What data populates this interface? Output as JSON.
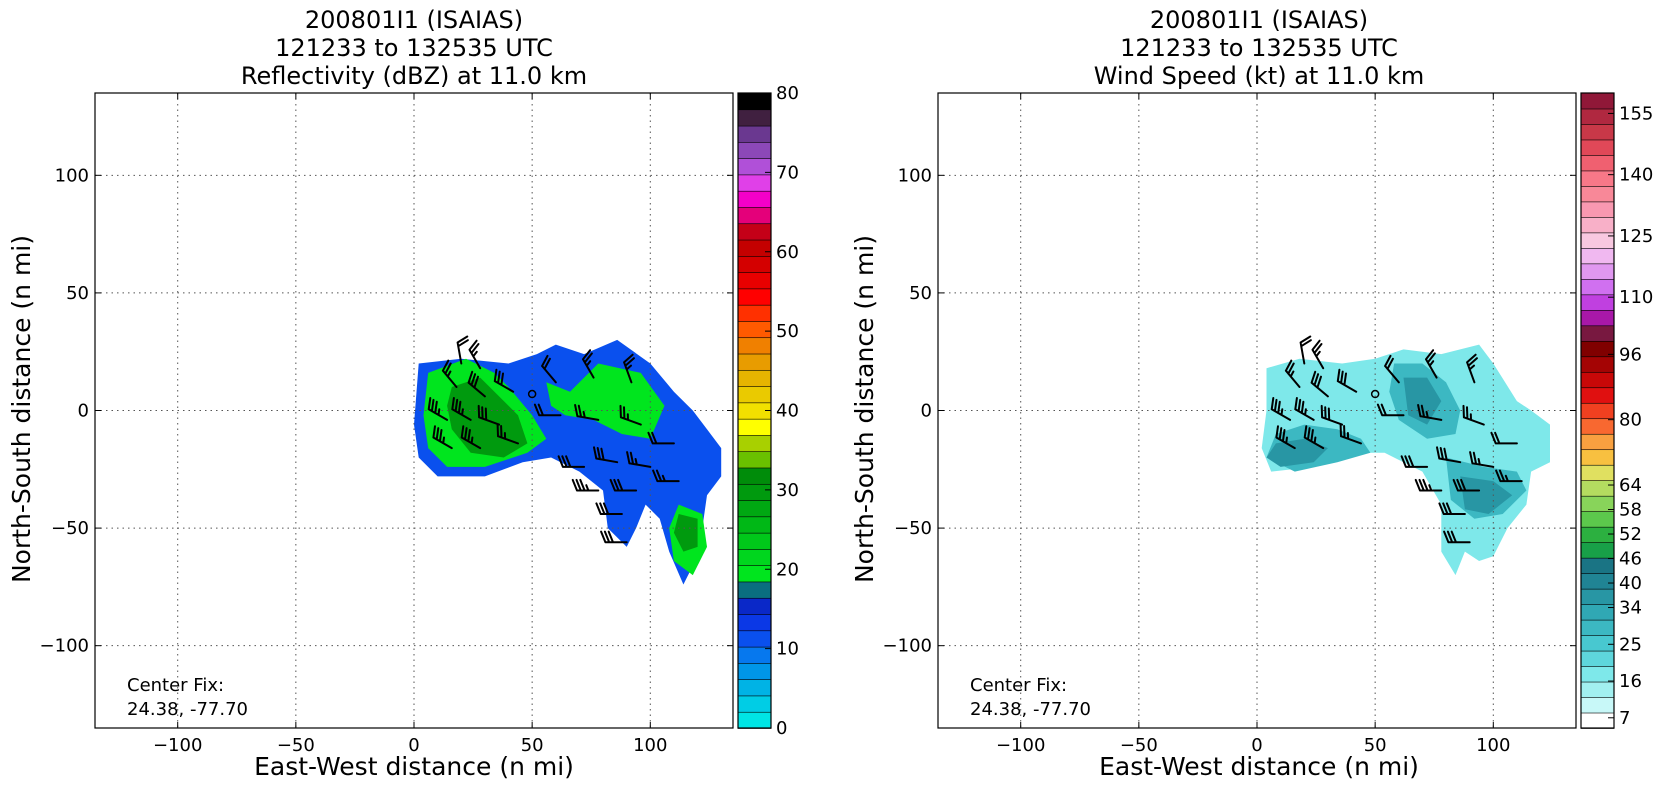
{
  "chart_data": [
    {
      "type": "heatmap",
      "title_lines": [
        "200801I1 (ISAIAS)",
        "121233 to 132535 UTC",
        "Reflectivity (dBZ) at 11.0 km"
      ],
      "xlabel": "East-West distance (n mi)",
      "ylabel": "North-South distance (n mi)",
      "xlim": [
        -135,
        135
      ],
      "ylim": [
        -135,
        135
      ],
      "xticks": [
        -100,
        -50,
        0,
        50,
        100
      ],
      "yticks": [
        -100,
        -50,
        0,
        50,
        100
      ],
      "grid": true,
      "annotation_lines": [
        "Center Fix:",
        "24.38, -77.70"
      ],
      "center_marker": [
        50,
        7
      ],
      "colorbar": {
        "min": 0,
        "max": 80,
        "step": 2.5,
        "tick_values": [
          0,
          10,
          20,
          30,
          40,
          50,
          60,
          70,
          80
        ],
        "colors": [
          "#00e5e5",
          "#00cde5",
          "#00b3e5",
          "#0096e8",
          "#0678ee",
          "#0a50ee",
          "#0b38e6",
          "#0a28c8",
          "#0a6e80",
          "#00e51e",
          "#00d61e",
          "#00c81a",
          "#00b816",
          "#00a812",
          "#009a0e",
          "#008c0a",
          "#6ac000",
          "#a8d000",
          "#ffff00",
          "#f2e000",
          "#eaca00",
          "#e6b400",
          "#e89c00",
          "#f08000",
          "#ff5a00",
          "#ff3000",
          "#ff0000",
          "#e80000",
          "#d40000",
          "#c40000",
          "#c40018",
          "#e4007a",
          "#f400c8",
          "#e040e8",
          "#b050d8",
          "#8c48b8",
          "#6a3890",
          "#402040",
          "#000000"
        ]
      },
      "echo_regions": [
        {
          "level": 5,
          "points": [
            [
              2,
              20
            ],
            [
              20,
              22
            ],
            [
              40,
              20
            ],
            [
              52,
              24
            ],
            [
              60,
              28
            ],
            [
              72,
              24
            ],
            [
              86,
              30
            ],
            [
              100,
              20
            ],
            [
              110,
              8
            ],
            [
              118,
              0
            ],
            [
              124,
              -8
            ],
            [
              130,
              -16
            ],
            [
              130,
              -28
            ],
            [
              124,
              -36
            ],
            [
              122,
              -50
            ],
            [
              120,
              -62
            ],
            [
              114,
              -74
            ],
            [
              108,
              -60
            ],
            [
              104,
              -46
            ],
            [
              98,
              -40
            ],
            [
              94,
              -50
            ],
            [
              90,
              -58
            ],
            [
              82,
              -50
            ],
            [
              80,
              -34
            ],
            [
              70,
              -26
            ],
            [
              58,
              -20
            ],
            [
              46,
              -22
            ],
            [
              30,
              -28
            ],
            [
              10,
              -28
            ],
            [
              2,
              -20
            ],
            [
              0,
              -6
            ]
          ]
        },
        {
          "level": 9,
          "points": [
            [
              6,
              16
            ],
            [
              22,
              22
            ],
            [
              34,
              16
            ],
            [
              40,
              10
            ],
            [
              50,
              -2
            ],
            [
              56,
              -12
            ],
            [
              48,
              -18
            ],
            [
              30,
              -24
            ],
            [
              14,
              -24
            ],
            [
              6,
              -16
            ],
            [
              4,
              -2
            ]
          ]
        },
        {
          "level": 9,
          "points": [
            [
              56,
              12
            ],
            [
              66,
              8
            ],
            [
              78,
              20
            ],
            [
              96,
              16
            ],
            [
              106,
              2
            ],
            [
              100,
              -12
            ],
            [
              88,
              -10
            ],
            [
              76,
              -4
            ],
            [
              64,
              -2
            ],
            [
              58,
              2
            ]
          ]
        },
        {
          "level": 9,
          "points": [
            [
              112,
              -40
            ],
            [
              122,
              -44
            ],
            [
              124,
              -58
            ],
            [
              118,
              -70
            ],
            [
              110,
              -64
            ],
            [
              108,
              -50
            ]
          ]
        },
        {
          "level": 14,
          "points": [
            [
              16,
              10
            ],
            [
              28,
              14
            ],
            [
              36,
              6
            ],
            [
              44,
              -2
            ],
            [
              48,
              -14
            ],
            [
              38,
              -20
            ],
            [
              24,
              -18
            ],
            [
              16,
              -8
            ],
            [
              14,
              2
            ]
          ]
        },
        {
          "level": 14,
          "points": [
            [
              112,
              -44
            ],
            [
              120,
              -46
            ],
            [
              120,
              -58
            ],
            [
              114,
              -60
            ],
            [
              110,
              -52
            ]
          ]
        }
      ],
      "barbs": [
        {
          "x": 20,
          "y": 20,
          "dir": 350,
          "kt": 20
        },
        {
          "x": 28,
          "y": 18,
          "dir": 330,
          "kt": 25
        },
        {
          "x": 18,
          "y": 10,
          "dir": 320,
          "kt": 25
        },
        {
          "x": 30,
          "y": 6,
          "dir": 310,
          "kt": 30
        },
        {
          "x": 42,
          "y": 8,
          "dir": 300,
          "kt": 30
        },
        {
          "x": 14,
          "y": -4,
          "dir": 300,
          "kt": 35
        },
        {
          "x": 24,
          "y": -4,
          "dir": 300,
          "kt": 35
        },
        {
          "x": 36,
          "y": -6,
          "dir": 290,
          "kt": 30
        },
        {
          "x": 16,
          "y": -16,
          "dir": 300,
          "kt": 35
        },
        {
          "x": 28,
          "y": -16,
          "dir": 300,
          "kt": 35
        },
        {
          "x": 44,
          "y": -14,
          "dir": 290,
          "kt": 25
        },
        {
          "x": 60,
          "y": 12,
          "dir": 320,
          "kt": 20
        },
        {
          "x": 76,
          "y": 14,
          "dir": 330,
          "kt": 25
        },
        {
          "x": 92,
          "y": 12,
          "dir": 340,
          "kt": 25
        },
        {
          "x": 62,
          "y": -2,
          "dir": 270,
          "kt": 20
        },
        {
          "x": 78,
          "y": -4,
          "dir": 280,
          "kt": 25
        },
        {
          "x": 96,
          "y": -6,
          "dir": 290,
          "kt": 25
        },
        {
          "x": 110,
          "y": -14,
          "dir": 270,
          "kt": 20
        },
        {
          "x": 72,
          "y": -24,
          "dir": 270,
          "kt": 30
        },
        {
          "x": 86,
          "y": -22,
          "dir": 280,
          "kt": 30
        },
        {
          "x": 100,
          "y": -24,
          "dir": 280,
          "kt": 25
        },
        {
          "x": 78,
          "y": -34,
          "dir": 270,
          "kt": 35
        },
        {
          "x": 94,
          "y": -34,
          "dir": 270,
          "kt": 30
        },
        {
          "x": 112,
          "y": -30,
          "dir": 270,
          "kt": 25
        },
        {
          "x": 88,
          "y": -44,
          "dir": 270,
          "kt": 30
        },
        {
          "x": 90,
          "y": -56,
          "dir": 270,
          "kt": 30
        }
      ]
    },
    {
      "type": "heatmap",
      "title_lines": [
        "200801I1 (ISAIAS)",
        "121233 to 132535 UTC",
        "Wind Speed (kt) at 11.0 km"
      ],
      "xlabel": "East-West distance (n mi)",
      "ylabel": "North-South distance (n mi)",
      "xlim": [
        -135,
        135
      ],
      "ylim": [
        -135,
        135
      ],
      "xticks": [
        -100,
        -50,
        0,
        50,
        100
      ],
      "yticks": [
        -100,
        -50,
        0,
        50,
        100
      ],
      "grid": true,
      "annotation_lines": [
        "Center Fix:",
        "24.38, -77.70"
      ],
      "center_marker": [
        50,
        7
      ],
      "colorbar": {
        "min": 4.5,
        "max": 160,
        "step": 3,
        "tick_values": [
          7,
          16,
          25,
          34,
          40,
          46,
          52,
          58,
          64,
          80,
          96,
          110,
          125,
          140,
          155
        ],
        "colors": [
          "#ffffff",
          "#c8f8f8",
          "#a2f0f0",
          "#7ee8ea",
          "#5ed6dc",
          "#48c8d0",
          "#3cb8c2",
          "#30a8b4",
          "#2896a4",
          "#208494",
          "#1a7484",
          "#18a048",
          "#2cb040",
          "#5cc84c",
          "#88d45a",
          "#b4dc60",
          "#e0e060",
          "#f8c040",
          "#f8a040",
          "#f86830",
          "#f04020",
          "#e01010",
          "#c80808",
          "#a40404",
          "#800000",
          "#781840",
          "#a818a8",
          "#c040e0",
          "#d070f0",
          "#e098f0",
          "#f0b8f0",
          "#f8c8e0",
          "#f8b0c8",
          "#f898b0",
          "#f88898",
          "#f87888",
          "#f06070",
          "#e04858",
          "#c83848",
          "#b02840",
          "#901838"
        ]
      },
      "echo_regions": [
        {
          "level": 3,
          "points": [
            [
              4,
              18
            ],
            [
              18,
              22
            ],
            [
              36,
              20
            ],
            [
              50,
              22
            ],
            [
              62,
              26
            ],
            [
              78,
              24
            ],
            [
              94,
              28
            ],
            [
              100,
              20
            ],
            [
              110,
              4
            ],
            [
              116,
              0
            ],
            [
              124,
              -6
            ],
            [
              124,
              -22
            ],
            [
              116,
              -26
            ],
            [
              114,
              -40
            ],
            [
              106,
              -50
            ],
            [
              100,
              -62
            ],
            [
              94,
              -64
            ],
            [
              88,
              -60
            ],
            [
              84,
              -70
            ],
            [
              78,
              -60
            ],
            [
              78,
              -40
            ],
            [
              70,
              -26
            ],
            [
              54,
              -18
            ],
            [
              40,
              -18
            ],
            [
              24,
              -24
            ],
            [
              6,
              -26
            ],
            [
              2,
              -16
            ],
            [
              4,
              0
            ]
          ]
        },
        {
          "level": 6,
          "points": [
            [
              8,
              -10
            ],
            [
              20,
              -6
            ],
            [
              34,
              -8
            ],
            [
              44,
              -12
            ],
            [
              48,
              -18
            ],
            [
              34,
              -22
            ],
            [
              16,
              -26
            ],
            [
              4,
              -20
            ]
          ]
        },
        {
          "level": 6,
          "points": [
            [
              58,
              20
            ],
            [
              70,
              20
            ],
            [
              80,
              12
            ],
            [
              86,
              0
            ],
            [
              84,
              -10
            ],
            [
              72,
              -12
            ],
            [
              60,
              -4
            ],
            [
              56,
              8
            ]
          ]
        },
        {
          "level": 6,
          "points": [
            [
              80,
              -20
            ],
            [
              96,
              -24
            ],
            [
              110,
              -26
            ],
            [
              114,
              -34
            ],
            [
              104,
              -44
            ],
            [
              92,
              -46
            ],
            [
              82,
              -38
            ]
          ]
        },
        {
          "level": 8,
          "points": [
            [
              8,
              -14
            ],
            [
              20,
              -12
            ],
            [
              30,
              -16
            ],
            [
              24,
              -22
            ],
            [
              10,
              -24
            ],
            [
              4,
              -20
            ]
          ]
        },
        {
          "level": 8,
          "points": [
            [
              62,
              14
            ],
            [
              72,
              14
            ],
            [
              78,
              4
            ],
            [
              72,
              -6
            ],
            [
              64,
              -2
            ]
          ]
        },
        {
          "level": 8,
          "points": [
            [
              86,
              -28
            ],
            [
              100,
              -30
            ],
            [
              108,
              -36
            ],
            [
              98,
              -44
            ],
            [
              88,
              -42
            ]
          ]
        }
      ],
      "barbs": [
        {
          "x": 20,
          "y": 20,
          "dir": 350,
          "kt": 20
        },
        {
          "x": 28,
          "y": 18,
          "dir": 330,
          "kt": 25
        },
        {
          "x": 18,
          "y": 10,
          "dir": 320,
          "kt": 25
        },
        {
          "x": 30,
          "y": 6,
          "dir": 310,
          "kt": 30
        },
        {
          "x": 42,
          "y": 8,
          "dir": 300,
          "kt": 30
        },
        {
          "x": 14,
          "y": -4,
          "dir": 300,
          "kt": 35
        },
        {
          "x": 24,
          "y": -4,
          "dir": 300,
          "kt": 35
        },
        {
          "x": 36,
          "y": -6,
          "dir": 290,
          "kt": 30
        },
        {
          "x": 16,
          "y": -16,
          "dir": 300,
          "kt": 35
        },
        {
          "x": 28,
          "y": -16,
          "dir": 300,
          "kt": 35
        },
        {
          "x": 44,
          "y": -14,
          "dir": 290,
          "kt": 25
        },
        {
          "x": 60,
          "y": 12,
          "dir": 320,
          "kt": 20
        },
        {
          "x": 76,
          "y": 14,
          "dir": 330,
          "kt": 25
        },
        {
          "x": 92,
          "y": 12,
          "dir": 340,
          "kt": 25
        },
        {
          "x": 62,
          "y": -2,
          "dir": 270,
          "kt": 20
        },
        {
          "x": 78,
          "y": -4,
          "dir": 280,
          "kt": 25
        },
        {
          "x": 96,
          "y": -6,
          "dir": 290,
          "kt": 25
        },
        {
          "x": 110,
          "y": -14,
          "dir": 270,
          "kt": 20
        },
        {
          "x": 72,
          "y": -24,
          "dir": 270,
          "kt": 30
        },
        {
          "x": 86,
          "y": -22,
          "dir": 280,
          "kt": 30
        },
        {
          "x": 100,
          "y": -24,
          "dir": 280,
          "kt": 25
        },
        {
          "x": 78,
          "y": -34,
          "dir": 270,
          "kt": 35
        },
        {
          "x": 94,
          "y": -34,
          "dir": 270,
          "kt": 30
        },
        {
          "x": 112,
          "y": -30,
          "dir": 270,
          "kt": 25
        },
        {
          "x": 88,
          "y": -44,
          "dir": 270,
          "kt": 30
        },
        {
          "x": 90,
          "y": -56,
          "dir": 270,
          "kt": 30
        }
      ]
    }
  ]
}
